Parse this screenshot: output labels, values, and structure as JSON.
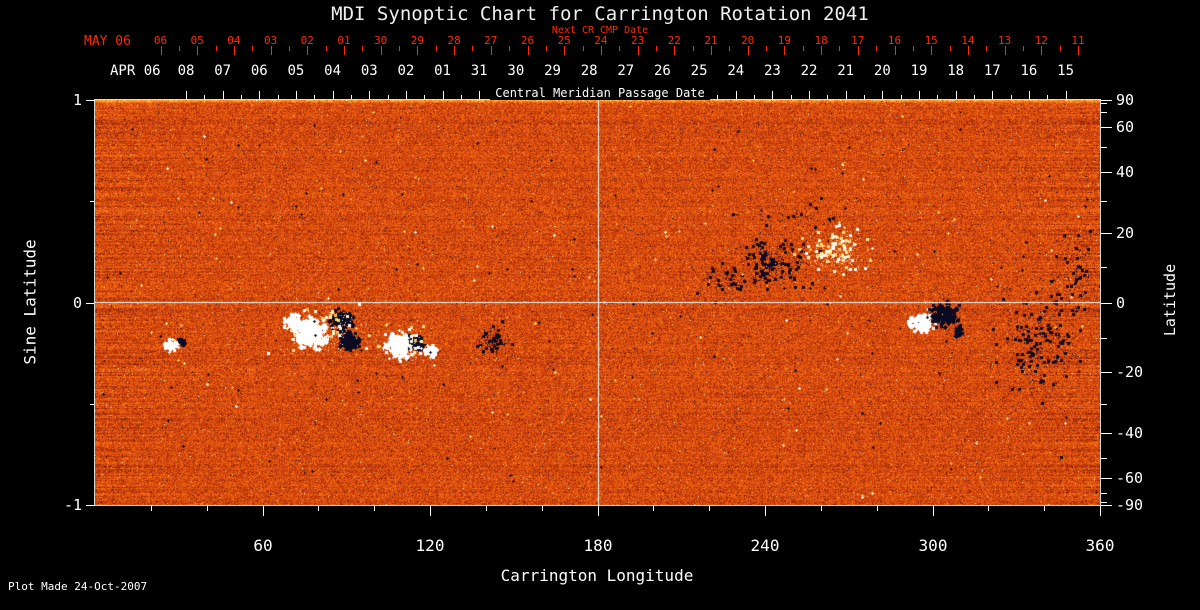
{
  "footer": {
    "plot_made": "Plot Made 24-Oct-2007"
  },
  "colors": {
    "background": "#000000",
    "axis": "#ffffff",
    "next_cr_red": "#ff2a00",
    "title_text": "#efefef",
    "frame": "#d8d8d8"
  },
  "chart_data": {
    "type": "heatmap",
    "title": "MDI Synoptic Chart for Carrington Rotation 2041",
    "xlabel": "Carrington Longitude",
    "ylabel_left": "Sine Latitude",
    "ylabel_right": "Latitude",
    "xlim": [
      0,
      360
    ],
    "x_ticks": [
      60,
      120,
      180,
      240,
      300,
      360
    ],
    "x_minor_step_deg": 20,
    "ylim_sine": [
      -1,
      1
    ],
    "y_left_ticks": [
      1,
      0,
      -1
    ],
    "y_left_minor_ticks": [
      0.5,
      -0.5
    ],
    "y_right_ticks_deg": [
      90,
      60,
      40,
      20,
      0,
      -20,
      -40,
      -60,
      -90
    ],
    "y_right_minor_step_deg": 10,
    "top_axis_next_cr": {
      "label": "Next CR CMP Date",
      "month_label": "MAY 06",
      "day_ticks": [
        "06",
        "05",
        "04",
        "03",
        "02",
        "01",
        "30",
        "29",
        "28",
        "27",
        "26",
        "25",
        "24",
        "23",
        "22",
        "21",
        "20",
        "19",
        "18",
        "17",
        "16",
        "15",
        "14",
        "13",
        "12",
        "11"
      ]
    },
    "top_axis_cmp": {
      "label": "Central Meridian Passage Date",
      "month_label": "APR 06",
      "day_ticks": [
        "08",
        "07",
        "06",
        "05",
        "04",
        "03",
        "02",
        "01",
        "31",
        "30",
        "29",
        "28",
        "27",
        "26",
        "25",
        "24",
        "23",
        "22",
        "21",
        "20",
        "19",
        "18",
        "17",
        "16",
        "15"
      ]
    },
    "crosshair": {
      "lon": 180,
      "sine_latitude": 0
    },
    "colormap_stops": [
      [
        -1.0,
        [
          10,
          10,
          34
        ]
      ],
      [
        -0.55,
        [
          45,
          12,
          20
        ]
      ],
      [
        -0.25,
        [
          120,
          28,
          10
        ]
      ],
      [
        0.0,
        [
          205,
          62,
          12
        ]
      ],
      [
        0.3,
        [
          248,
          110,
          20
        ]
      ],
      [
        0.6,
        [
          255,
          190,
          70
        ]
      ],
      [
        0.85,
        [
          255,
          235,
          160
        ]
      ],
      [
        1.0,
        [
          255,
          255,
          255
        ]
      ]
    ],
    "noise": {
      "seed": 20411,
      "base": 0.08,
      "grain": 0.45,
      "row_streak": 0.14,
      "bright_grain_prob": 0.004,
      "dark_grain_prob": 0.004
    },
    "active_regions": [
      {
        "kind": "blob",
        "lon": 27,
        "sine_lat": -0.21,
        "r": 5,
        "polarity": 1
      },
      {
        "kind": "blob",
        "lon": 31,
        "sine_lat": -0.19,
        "r": 3,
        "polarity": -1
      },
      {
        "kind": "blob",
        "lon": 71,
        "sine_lat": -0.1,
        "r": 6,
        "polarity": 1
      },
      {
        "kind": "blob",
        "lon": 77,
        "sine_lat": -0.15,
        "r": 12,
        "polarity": 1
      },
      {
        "kind": "blob",
        "lon": 88,
        "sine_lat": -0.09,
        "r": 8,
        "polarity": -1
      },
      {
        "kind": "blob",
        "lon": 91,
        "sine_lat": -0.19,
        "r": 7,
        "polarity": -1
      },
      {
        "kind": "speckle",
        "lon": 81,
        "sine_lat": -0.13,
        "sx": 20,
        "sy": 13,
        "n": 180,
        "polarity": 1
      },
      {
        "kind": "blob",
        "lon": 109,
        "sine_lat": -0.21,
        "r": 10,
        "polarity": 1
      },
      {
        "kind": "blob",
        "lon": 115,
        "sine_lat": -0.2,
        "r": 6,
        "polarity": -1
      },
      {
        "kind": "blob",
        "lon": 120,
        "sine_lat": -0.24,
        "r": 5,
        "polarity": 1
      },
      {
        "kind": "speckle",
        "lon": 111,
        "sine_lat": -0.2,
        "sx": 13,
        "sy": 9,
        "n": 110,
        "polarity": 1
      },
      {
        "kind": "speckle",
        "lon": 142,
        "sine_lat": -0.19,
        "sx": 9,
        "sy": 7,
        "n": 140,
        "polarity": -1
      },
      {
        "kind": "speckle",
        "lon": 225,
        "sine_lat": 0.1,
        "sx": 12,
        "sy": 9,
        "n": 100,
        "polarity": -1
      },
      {
        "kind": "speckle",
        "lon": 242,
        "sine_lat": 0.2,
        "sx": 17,
        "sy": 12,
        "n": 300,
        "polarity": -1
      },
      {
        "kind": "speckle",
        "lon": 265,
        "sine_lat": 0.25,
        "sx": 18,
        "sy": 11,
        "n": 240,
        "polarity": 1
      },
      {
        "kind": "speckle",
        "lon": 250,
        "sine_lat": 0.42,
        "sx": 24,
        "sy": 7,
        "n": 60,
        "polarity": -1
      },
      {
        "kind": "blob",
        "lon": 296,
        "sine_lat": -0.1,
        "r": 8,
        "polarity": 1
      },
      {
        "kind": "blob",
        "lon": 304,
        "sine_lat": -0.06,
        "r": 9,
        "polarity": -1
      },
      {
        "kind": "blob",
        "lon": 309,
        "sine_lat": -0.14,
        "r": 4,
        "polarity": -1
      },
      {
        "kind": "speckle",
        "lon": 338,
        "sine_lat": -0.2,
        "sx": 20,
        "sy": 30,
        "n": 380,
        "polarity": -1
      },
      {
        "kind": "speckle",
        "lon": 352,
        "sine_lat": 0.15,
        "sx": 10,
        "sy": 22,
        "n": 120,
        "polarity": -1
      }
    ],
    "global_speckles": {
      "n": 1600,
      "dark_fraction": 0.55,
      "equator_sigma": 0.38
    }
  }
}
